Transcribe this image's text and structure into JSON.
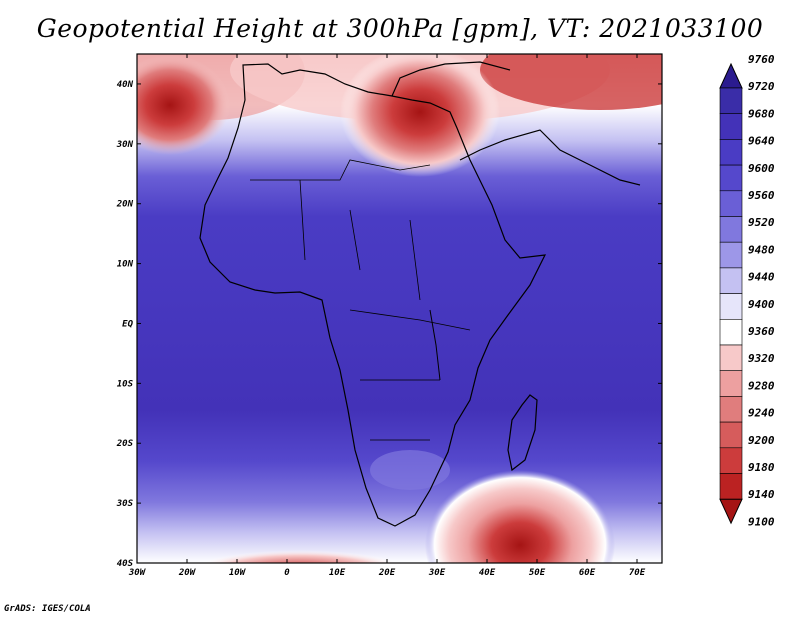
{
  "title": "Geopotential Height at 300hPa [gpm], VT: 2021033100",
  "credit": "GrADS: IGES/COLA",
  "lon_labels": [
    "30W",
    "20W",
    "10W",
    "0",
    "10E",
    "20E",
    "30E",
    "40E",
    "50E",
    "60E",
    "70E"
  ],
  "lat_labels": [
    "40N",
    "30N",
    "20N",
    "10N",
    "EQ",
    "10S",
    "20S",
    "30S",
    "40S"
  ],
  "colorbar": {
    "levels": [
      "9760",
      "9720",
      "9680",
      "9640",
      "9600",
      "9560",
      "9520",
      "9480",
      "9440",
      "9400",
      "9360",
      "9320",
      "9280",
      "9240",
      "9200",
      "9180",
      "9140",
      "9100"
    ],
    "colors": [
      "#2b1b8f",
      "#3a2da8",
      "#4332b8",
      "#4a3cc4",
      "#5548cc",
      "#6a5fd6",
      "#8078de",
      "#9d97e8",
      "#c4c1f2",
      "#e6e5fa",
      "#ffffff",
      "#f7c9c9",
      "#eda0a0",
      "#e07d7d",
      "#d65c5c",
      "#cc3c3c",
      "#bb2222",
      "#a51414"
    ]
  },
  "field": {
    "lowest_color": "#a51414",
    "highest_color": "#3f33b4"
  }
}
